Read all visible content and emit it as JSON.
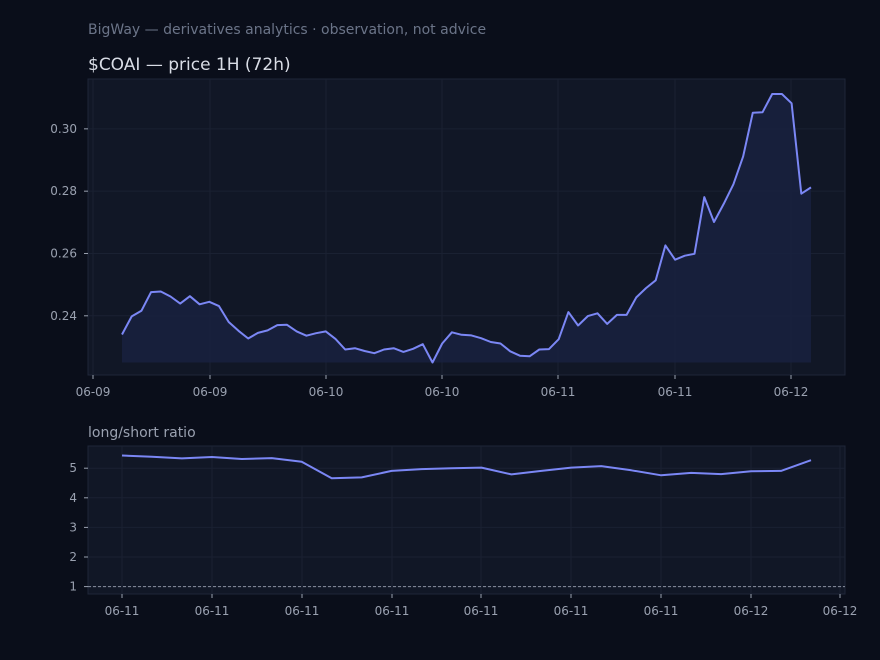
{
  "header": "BigWay — derivatives analytics · observation, not advice",
  "colors": {
    "background": "#0a0e1a",
    "panel": "#111726",
    "line": "#7b87f5",
    "fill": "#1a2240",
    "grid": "#1c2333",
    "text": "#9aa1b0"
  },
  "chart_data": [
    {
      "type": "area",
      "title": "$COAI — price 1H (72h)",
      "x_tick_labels": [
        "06-09",
        "06-09",
        "06-10",
        "06-10",
        "06-11",
        "06-11",
        "06-12"
      ],
      "ylim": [
        0.221,
        0.316
      ],
      "yticks": [
        0.24,
        0.26,
        0.28,
        0.3
      ],
      "grid": true,
      "values": [
        0.234,
        0.2398,
        0.2416,
        0.2476,
        0.2478,
        0.2462,
        0.2439,
        0.2463,
        0.2437,
        0.2445,
        0.2431,
        0.238,
        0.2352,
        0.2327,
        0.2345,
        0.2353,
        0.237,
        0.2371,
        0.235,
        0.2336,
        0.2344,
        0.235,
        0.2326,
        0.2292,
        0.2296,
        0.2287,
        0.228,
        0.2292,
        0.2296,
        0.2284,
        0.2294,
        0.2309,
        0.225,
        0.2311,
        0.2347,
        0.2339,
        0.2337,
        0.2328,
        0.2316,
        0.2311,
        0.2286,
        0.2272,
        0.227,
        0.2292,
        0.2293,
        0.2325,
        0.2412,
        0.2369,
        0.2399,
        0.2408,
        0.2374,
        0.2403,
        0.2403,
        0.2459,
        0.2489,
        0.2514,
        0.2626,
        0.258,
        0.2593,
        0.2599,
        0.2781,
        0.2701,
        0.2759,
        0.2822,
        0.2911,
        0.3052,
        0.3053,
        0.3112,
        0.3112,
        0.3082,
        0.2792,
        0.2812
      ]
    },
    {
      "type": "line",
      "title": "long/short ratio",
      "x_tick_labels": [
        "06-11",
        "06-11",
        "06-11",
        "06-11",
        "06-11",
        "06-11",
        "06-11",
        "06-12",
        "06-12"
      ],
      "ylim": [
        0.75,
        5.75
      ],
      "yticks": [
        1,
        2,
        3,
        4,
        5
      ],
      "grid": true,
      "reference_line": 1,
      "values": [
        5.43,
        5.39,
        5.33,
        5.38,
        5.31,
        5.34,
        5.22,
        4.66,
        4.69,
        4.91,
        4.97,
        5.0,
        5.02,
        4.79,
        4.91,
        5.02,
        5.07,
        4.93,
        4.76,
        4.84,
        4.8,
        4.9,
        4.91,
        5.27
      ]
    }
  ]
}
